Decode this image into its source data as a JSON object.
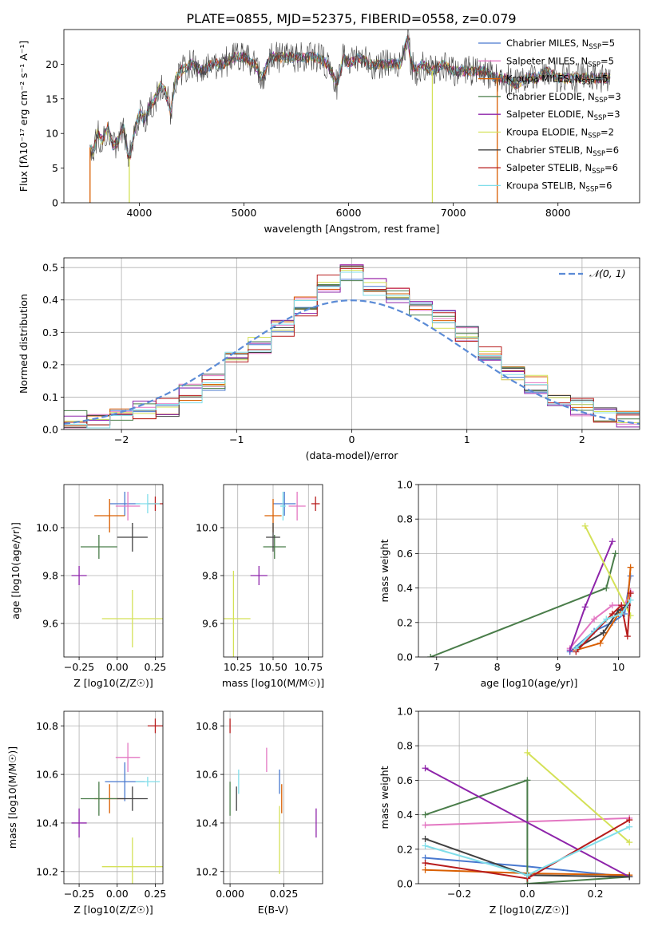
{
  "figure": {
    "title": "PLATE=0855, MJD=52375, FIBERID=0558, z=0.079"
  },
  "chart_data": [
    {
      "panel": "spectrum",
      "type": "line",
      "xlabel": "wavelength [Angstrom, rest frame]",
      "ylabel": "Flux [fλ10⁻¹⁷ erg cm⁻² s⁻¹ A⁻¹]",
      "xlim": [
        3280,
        8780
      ],
      "ylim": [
        0,
        25
      ],
      "xticks": [
        "4000",
        "5000",
        "6000",
        "7000",
        "8000"
      ],
      "yticks": [
        "0",
        "5",
        "10",
        "15",
        "20"
      ],
      "data_series": {
        "name": "data",
        "color": "#444444",
        "x": [
          3530,
          3560,
          3600,
          3650,
          3700,
          3750,
          3800,
          3850,
          3900,
          3950,
          4000,
          4050,
          4100,
          4150,
          4200,
          4250,
          4300,
          4350,
          4400,
          4500,
          4600,
          4700,
          4800,
          4900,
          5000,
          5100,
          5175,
          5250,
          5300,
          5400,
          5500,
          5600,
          5700,
          5800,
          5890,
          5950,
          6000,
          6100,
          6200,
          6300,
          6400,
          6500,
          6563,
          6600,
          6650,
          6700,
          6800,
          6900,
          7000,
          7100,
          7200,
          7300,
          7400,
          7500,
          7600,
          7700,
          7800,
          7900,
          8000,
          8100,
          8200,
          8300,
          8400,
          8500
        ],
        "y": [
          8,
          7,
          10,
          9,
          11,
          8,
          9,
          11,
          6,
          10,
          13,
          12,
          14,
          15,
          17,
          16,
          13,
          18,
          19,
          20,
          19,
          20,
          20,
          21,
          21,
          20,
          18,
          21,
          21,
          21,
          21,
          21,
          21,
          20,
          17,
          21,
          20,
          21,
          20,
          20,
          20,
          20,
          24,
          20,
          19,
          20,
          19,
          20,
          19,
          19,
          19,
          19,
          18,
          18,
          17,
          18,
          18,
          19,
          18,
          18,
          18,
          18,
          18,
          18
        ]
      },
      "series": [
        {
          "name": "Chabrier MILES, N_SSP=5",
          "label": "Chabrier MILES, N",
          "sub": "SSP",
          "suffix": "=5",
          "color": "#4878cf"
        },
        {
          "name": "Salpeter MILES, N_SSP=5",
          "label": "Salpeter MILES, N",
          "sub": "SSP",
          "suffix": "=5",
          "color": "#e377c2"
        },
        {
          "name": "Kroupa MILES, N_SSP=5",
          "label": "Kroupa MILES, N",
          "sub": "SSP",
          "suffix": "=5",
          "color": "#d95f02"
        },
        {
          "name": "Chabrier ELODIE, N_SSP=3",
          "label": "Chabrier ELODIE, N",
          "sub": "SSP",
          "suffix": "=3",
          "color": "#4a7d4a"
        },
        {
          "name": "Salpeter ELODIE, N_SSP=3",
          "label": "Salpeter ELODIE, N",
          "sub": "SSP",
          "suffix": "=3",
          "color": "#8e24aa"
        },
        {
          "name": "Kroupa ELODIE, N_SSP=2",
          "label": "Kroupa ELODIE, N",
          "sub": "SSP",
          "suffix": "=2",
          "color": "#d4e157"
        },
        {
          "name": "Chabrier STELIB, N_SSP=6",
          "label": "Chabrier STELIB, N",
          "sub": "SSP",
          "suffix": "=6",
          "color": "#404040"
        },
        {
          "name": "Salpeter STELIB, N_SSP=6",
          "label": "Salpeter STELIB, N",
          "sub": "SSP",
          "suffix": "=6",
          "color": "#b71c1c"
        },
        {
          "name": "Kroupa STELIB, N_SSP=6",
          "label": "Kroupa STELIB, N",
          "sub": "SSP",
          "suffix": "=6",
          "color": "#80deea"
        }
      ]
    },
    {
      "panel": "residuals",
      "type": "histogram",
      "xlabel": "(data-model)/error",
      "ylabel": "Normed distribution",
      "xlim": [
        -2.5,
        2.5
      ],
      "ylim": [
        0,
        0.53
      ],
      "xticks": [
        -2,
        -1,
        0,
        1,
        2
      ],
      "yticks": [
        0.0,
        0.1,
        0.2,
        0.3,
        0.4,
        0.5
      ],
      "legend": {
        "label": "𝒩(0, 1)",
        "placement": "upper right"
      },
      "bins": [
        -2.5,
        -2.3,
        -2.1,
        -1.9,
        -1.7,
        -1.5,
        -1.3,
        -1.1,
        -0.9,
        -0.7,
        -0.5,
        -0.3,
        -0.1,
        0.1,
        0.3,
        0.5,
        0.7,
        0.9,
        1.1,
        1.3,
        1.5,
        1.7,
        1.9,
        2.1,
        2.3,
        2.5
      ],
      "hist_envelope": [
        0.03,
        0.03,
        0.04,
        0.06,
        0.07,
        0.11,
        0.15,
        0.22,
        0.26,
        0.31,
        0.38,
        0.45,
        0.48,
        0.44,
        0.41,
        0.38,
        0.34,
        0.3,
        0.24,
        0.18,
        0.14,
        0.1,
        0.07,
        0.05,
        0.03
      ],
      "gaussian": {
        "mean": 0,
        "sigma": 1
      }
    },
    {
      "panel": "age-vs-Z",
      "type": "errorbar",
      "xlabel": "Z [log10(Z/Z☉)]",
      "ylabel": "age [log10(age/yr)]",
      "xlim": [
        -0.35,
        0.3
      ],
      "ylim": [
        9.46,
        10.18
      ],
      "xticks": [
        "−0.25",
        "0.00",
        "0.25"
      ],
      "yticks": [
        "9.6",
        "9.8",
        "10.0"
      ],
      "points": [
        {
          "x": 0.05,
          "xerr": 0.1,
          "y": 10.1,
          "yerr": 0.05,
          "color": "#4878cf"
        },
        {
          "x": 0.07,
          "xerr": 0.08,
          "y": 10.09,
          "yerr": 0.06,
          "color": "#e377c2"
        },
        {
          "x": -0.05,
          "xerr": 0.1,
          "y": 10.05,
          "yerr": 0.07,
          "color": "#d95f02"
        },
        {
          "x": -0.12,
          "xerr": 0.12,
          "y": 9.92,
          "yerr": 0.05,
          "color": "#4a7d4a"
        },
        {
          "x": -0.25,
          "xerr": 0.05,
          "y": 9.8,
          "yerr": 0.04,
          "color": "#8e24aa"
        },
        {
          "x": 0.1,
          "xerr": 0.2,
          "y": 9.62,
          "yerr": 0.12,
          "color": "#d4e157"
        },
        {
          "x": 0.1,
          "xerr": 0.1,
          "y": 9.96,
          "yerr": 0.06,
          "color": "#404040"
        },
        {
          "x": 0.25,
          "xerr": 0.05,
          "y": 10.1,
          "yerr": 0.03,
          "color": "#b71c1c"
        },
        {
          "x": 0.2,
          "xerr": 0.08,
          "y": 10.1,
          "yerr": 0.04,
          "color": "#80deea"
        }
      ]
    },
    {
      "panel": "age-vs-mass",
      "type": "errorbar",
      "xlabel": "mass [log10(M/M☉)]",
      "ylabel": "",
      "xlim": [
        10.15,
        10.85
      ],
      "ylim": [
        9.46,
        10.18
      ],
      "xticks": [
        "10.25",
        "10.50",
        "10.75"
      ],
      "yticks": [
        "9.6",
        "9.8",
        "10.0"
      ],
      "points": [
        {
          "x": 10.58,
          "xerr": 0.08,
          "y": 10.1,
          "yerr": 0.05,
          "color": "#4878cf"
        },
        {
          "x": 10.67,
          "xerr": 0.06,
          "y": 10.09,
          "yerr": 0.06,
          "color": "#e377c2"
        },
        {
          "x": 10.5,
          "xerr": 0.06,
          "y": 10.05,
          "yerr": 0.07,
          "color": "#d95f02"
        },
        {
          "x": 10.51,
          "xerr": 0.08,
          "y": 9.92,
          "yerr": 0.05,
          "color": "#4a7d4a"
        },
        {
          "x": 10.4,
          "xerr": 0.06,
          "y": 9.8,
          "yerr": 0.04,
          "color": "#8e24aa"
        },
        {
          "x": 10.22,
          "xerr": 0.12,
          "y": 9.62,
          "yerr": 0.2,
          "color": "#d4e157"
        },
        {
          "x": 10.5,
          "xerr": 0.05,
          "y": 9.96,
          "yerr": 0.06,
          "color": "#404040"
        },
        {
          "x": 10.8,
          "xerr": 0.03,
          "y": 10.1,
          "yerr": 0.03,
          "color": "#b71c1c"
        },
        {
          "x": 10.57,
          "xerr": 0.02,
          "y": 10.09,
          "yerr": 0.06,
          "color": "#80deea"
        }
      ]
    },
    {
      "panel": "weight-vs-age",
      "type": "line",
      "xlabel": "age [log10(age/yr)]",
      "ylabel": "mass weight",
      "xlim": [
        6.7,
        10.35
      ],
      "ylim": [
        0,
        1
      ],
      "xticks": [
        7,
        8,
        9,
        10
      ],
      "yticks": [
        "0.0",
        "0.2",
        "0.4",
        "0.6",
        "0.8",
        "1.0"
      ],
      "series": [
        {
          "color": "#4878cf",
          "x": [
            9.2,
            9.6,
            9.9,
            10.1,
            10.2
          ],
          "y": [
            0.03,
            0.15,
            0.2,
            0.25,
            0.47
          ]
        },
        {
          "color": "#e377c2",
          "x": [
            9.2,
            9.6,
            9.9,
            10.1,
            10.2
          ],
          "y": [
            0.05,
            0.22,
            0.3,
            0.3,
            0.38
          ]
        },
        {
          "color": "#d95f02",
          "x": [
            9.3,
            9.7,
            10.0,
            10.15,
            10.2
          ],
          "y": [
            0.04,
            0.08,
            0.25,
            0.3,
            0.52
          ]
        },
        {
          "color": "#4a7d4a",
          "x": [
            6.9,
            9.8,
            9.95
          ],
          "y": [
            0.0,
            0.4,
            0.6
          ]
        },
        {
          "color": "#8e24aa",
          "x": [
            9.2,
            9.45,
            9.9
          ],
          "y": [
            0.04,
            0.29,
            0.67
          ]
        },
        {
          "color": "#d4e157",
          "x": [
            9.45,
            10.2
          ],
          "y": [
            0.76,
            0.24
          ]
        },
        {
          "color": "#404040",
          "x": [
            9.3,
            9.75,
            10.0,
            10.15
          ],
          "y": [
            0.05,
            0.14,
            0.27,
            0.3
          ]
        },
        {
          "color": "#b71c1c",
          "x": [
            9.3,
            9.9,
            10.05,
            10.15,
            10.2
          ],
          "y": [
            0.03,
            0.25,
            0.3,
            0.12,
            0.37
          ]
        },
        {
          "color": "#80deea",
          "x": [
            9.3,
            9.8,
            10.05,
            10.2
          ],
          "y": [
            0.05,
            0.22,
            0.25,
            0.33
          ]
        }
      ]
    },
    {
      "panel": "mass-vs-Z",
      "type": "errorbar",
      "xlabel": "Z [log10(Z/Z☉)]",
      "ylabel": "mass [log10(M/M☉)]",
      "xlim": [
        -0.35,
        0.3
      ],
      "ylim": [
        10.15,
        10.86
      ],
      "xticks": [
        "−0.25",
        "0.00",
        "0.25"
      ],
      "yticks": [
        "10.2",
        "10.4",
        "10.6",
        "10.8"
      ],
      "points": [
        {
          "x": 0.05,
          "xerr": 0.13,
          "y": 10.57,
          "yerr": 0.08,
          "color": "#4878cf"
        },
        {
          "x": 0.07,
          "xerr": 0.08,
          "y": 10.67,
          "yerr": 0.06,
          "color": "#e377c2"
        },
        {
          "x": -0.05,
          "xerr": 0.1,
          "y": 10.5,
          "yerr": 0.06,
          "color": "#d95f02"
        },
        {
          "x": -0.12,
          "xerr": 0.12,
          "y": 10.5,
          "yerr": 0.07,
          "color": "#4a7d4a"
        },
        {
          "x": -0.25,
          "xerr": 0.05,
          "y": 10.4,
          "yerr": 0.06,
          "color": "#8e24aa"
        },
        {
          "x": 0.1,
          "xerr": 0.2,
          "y": 10.22,
          "yerr": 0.12,
          "color": "#d4e157"
        },
        {
          "x": 0.1,
          "xerr": 0.1,
          "y": 10.5,
          "yerr": 0.05,
          "color": "#404040"
        },
        {
          "x": 0.25,
          "xerr": 0.05,
          "y": 10.8,
          "yerr": 0.03,
          "color": "#b71c1c"
        },
        {
          "x": 0.2,
          "xerr": 0.08,
          "y": 10.57,
          "yerr": 0.02,
          "color": "#80deea"
        }
      ]
    },
    {
      "panel": "mass-vs-EBV",
      "type": "errorbar",
      "xlabel": "E(B-V)",
      "ylabel": "",
      "xlim": [
        -0.003,
        0.043
      ],
      "ylim": [
        10.15,
        10.86
      ],
      "xticks": [
        "0.000",
        "0.025"
      ],
      "yticks": [
        "10.2",
        "10.4",
        "10.6",
        "10.8"
      ],
      "points": [
        {
          "x": 0.023,
          "xerr": 0,
          "y": 10.57,
          "yerr": 0.05,
          "color": "#4878cf"
        },
        {
          "x": 0.017,
          "xerr": 0,
          "y": 10.66,
          "yerr": 0.05,
          "color": "#e377c2"
        },
        {
          "x": 0.024,
          "xerr": 0,
          "y": 10.5,
          "yerr": 0.06,
          "color": "#d95f02"
        },
        {
          "x": 0.0,
          "xerr": 0,
          "y": 10.5,
          "yerr": 0.07,
          "color": "#4a7d4a"
        },
        {
          "x": 0.04,
          "xerr": 0,
          "y": 10.4,
          "yerr": 0.06,
          "color": "#8e24aa"
        },
        {
          "x": 0.023,
          "xerr": 0,
          "y": 10.33,
          "yerr": 0.14,
          "color": "#d4e157"
        },
        {
          "x": 0.003,
          "xerr": 0,
          "y": 10.5,
          "yerr": 0.05,
          "color": "#404040"
        },
        {
          "x": 0.0,
          "xerr": 0,
          "y": 10.8,
          "yerr": 0.03,
          "color": "#b71c1c"
        },
        {
          "x": 0.004,
          "xerr": 0,
          "y": 10.57,
          "yerr": 0.05,
          "color": "#80deea"
        }
      ]
    },
    {
      "panel": "weight-vs-Z",
      "type": "line",
      "xlabel": "Z [log10(Z/Z☉)]",
      "ylabel": "mass weight",
      "xlim": [
        -0.32,
        0.33
      ],
      "ylim": [
        0,
        1
      ],
      "xticks": [
        "−0.2",
        "0.0",
        "0.2"
      ],
      "yticks": [
        "0.0",
        "0.2",
        "0.4",
        "0.6",
        "0.8",
        "1.0"
      ],
      "series": [
        {
          "color": "#4878cf",
          "x": [
            -0.3,
            0.0,
            0.3
          ],
          "y": [
            0.15,
            0.1,
            0.04
          ]
        },
        {
          "color": "#e377c2",
          "x": [
            -0.3,
            0.3
          ],
          "y": [
            0.34,
            0.38
          ]
        },
        {
          "color": "#d95f02",
          "x": [
            -0.3,
            0.0,
            0.3
          ],
          "y": [
            0.08,
            0.06,
            0.05
          ]
        },
        {
          "color": "#4a7d4a",
          "x": [
            -0.3,
            0.0,
            0.0,
            0.3
          ],
          "y": [
            0.4,
            0.6,
            0.0,
            0.04
          ]
        },
        {
          "color": "#8e24aa",
          "x": [
            -0.3,
            0.3
          ],
          "y": [
            0.67,
            0.04
          ]
        },
        {
          "color": "#d4e157",
          "x": [
            0.0,
            0.3
          ],
          "y": [
            0.76,
            0.24
          ]
        },
        {
          "color": "#404040",
          "x": [
            -0.3,
            0.0,
            0.3
          ],
          "y": [
            0.26,
            0.05,
            0.04
          ]
        },
        {
          "color": "#b71c1c",
          "x": [
            -0.3,
            0.0,
            0.3
          ],
          "y": [
            0.12,
            0.03,
            0.37
          ]
        },
        {
          "color": "#80deea",
          "x": [
            -0.3,
            0.0,
            0.3
          ],
          "y": [
            0.22,
            0.05,
            0.33
          ]
        }
      ]
    }
  ]
}
